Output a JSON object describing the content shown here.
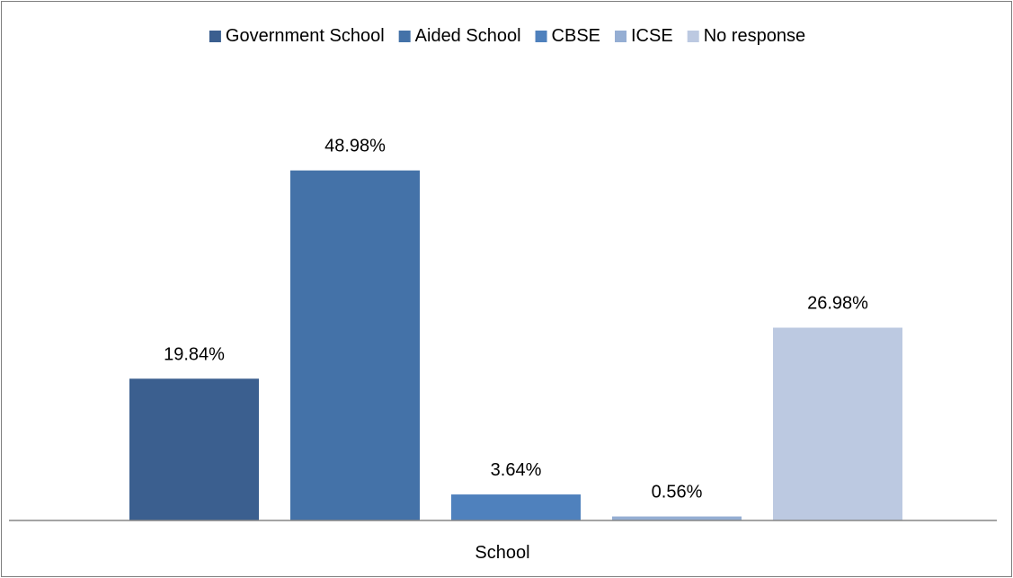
{
  "chart_data": {
    "type": "bar",
    "categories": [
      "School"
    ],
    "series": [
      {
        "name": "Government School",
        "values": [
          19.84
        ],
        "label": "19.84%",
        "color": "#3b5f8f"
      },
      {
        "name": "Aided School",
        "values": [
          48.98
        ],
        "label": "48.98%",
        "color": "#4472a8"
      },
      {
        "name": "CBSE",
        "values": [
          3.64
        ],
        "label": "3.64%",
        "color": "#4f81bd"
      },
      {
        "name": "ICSE",
        "values": [
          0.56
        ],
        "label": "0.56%",
        "color": "#95aed3"
      },
      {
        "name": "No response",
        "values": [
          26.98
        ],
        "label": "26.98%",
        "color": "#bcc9e1"
      }
    ],
    "ylim": [
      0,
      60
    ],
    "grid": false,
    "legend_position": "top"
  }
}
